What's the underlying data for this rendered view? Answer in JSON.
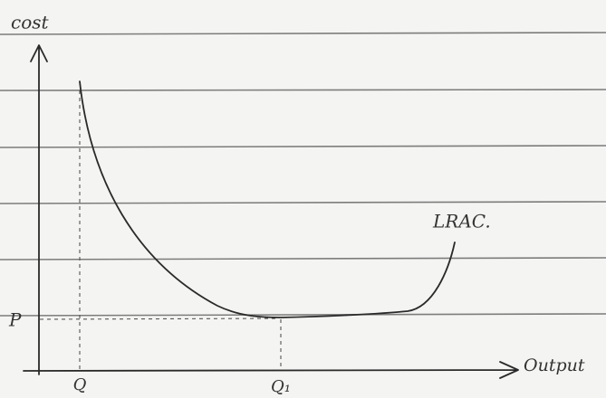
{
  "axes": {
    "y_label": "cost",
    "x_label": "Output"
  },
  "labels": {
    "price": "P",
    "quantity": "Q",
    "quantity_min": "Q₁",
    "curve": "LRAC."
  }
}
